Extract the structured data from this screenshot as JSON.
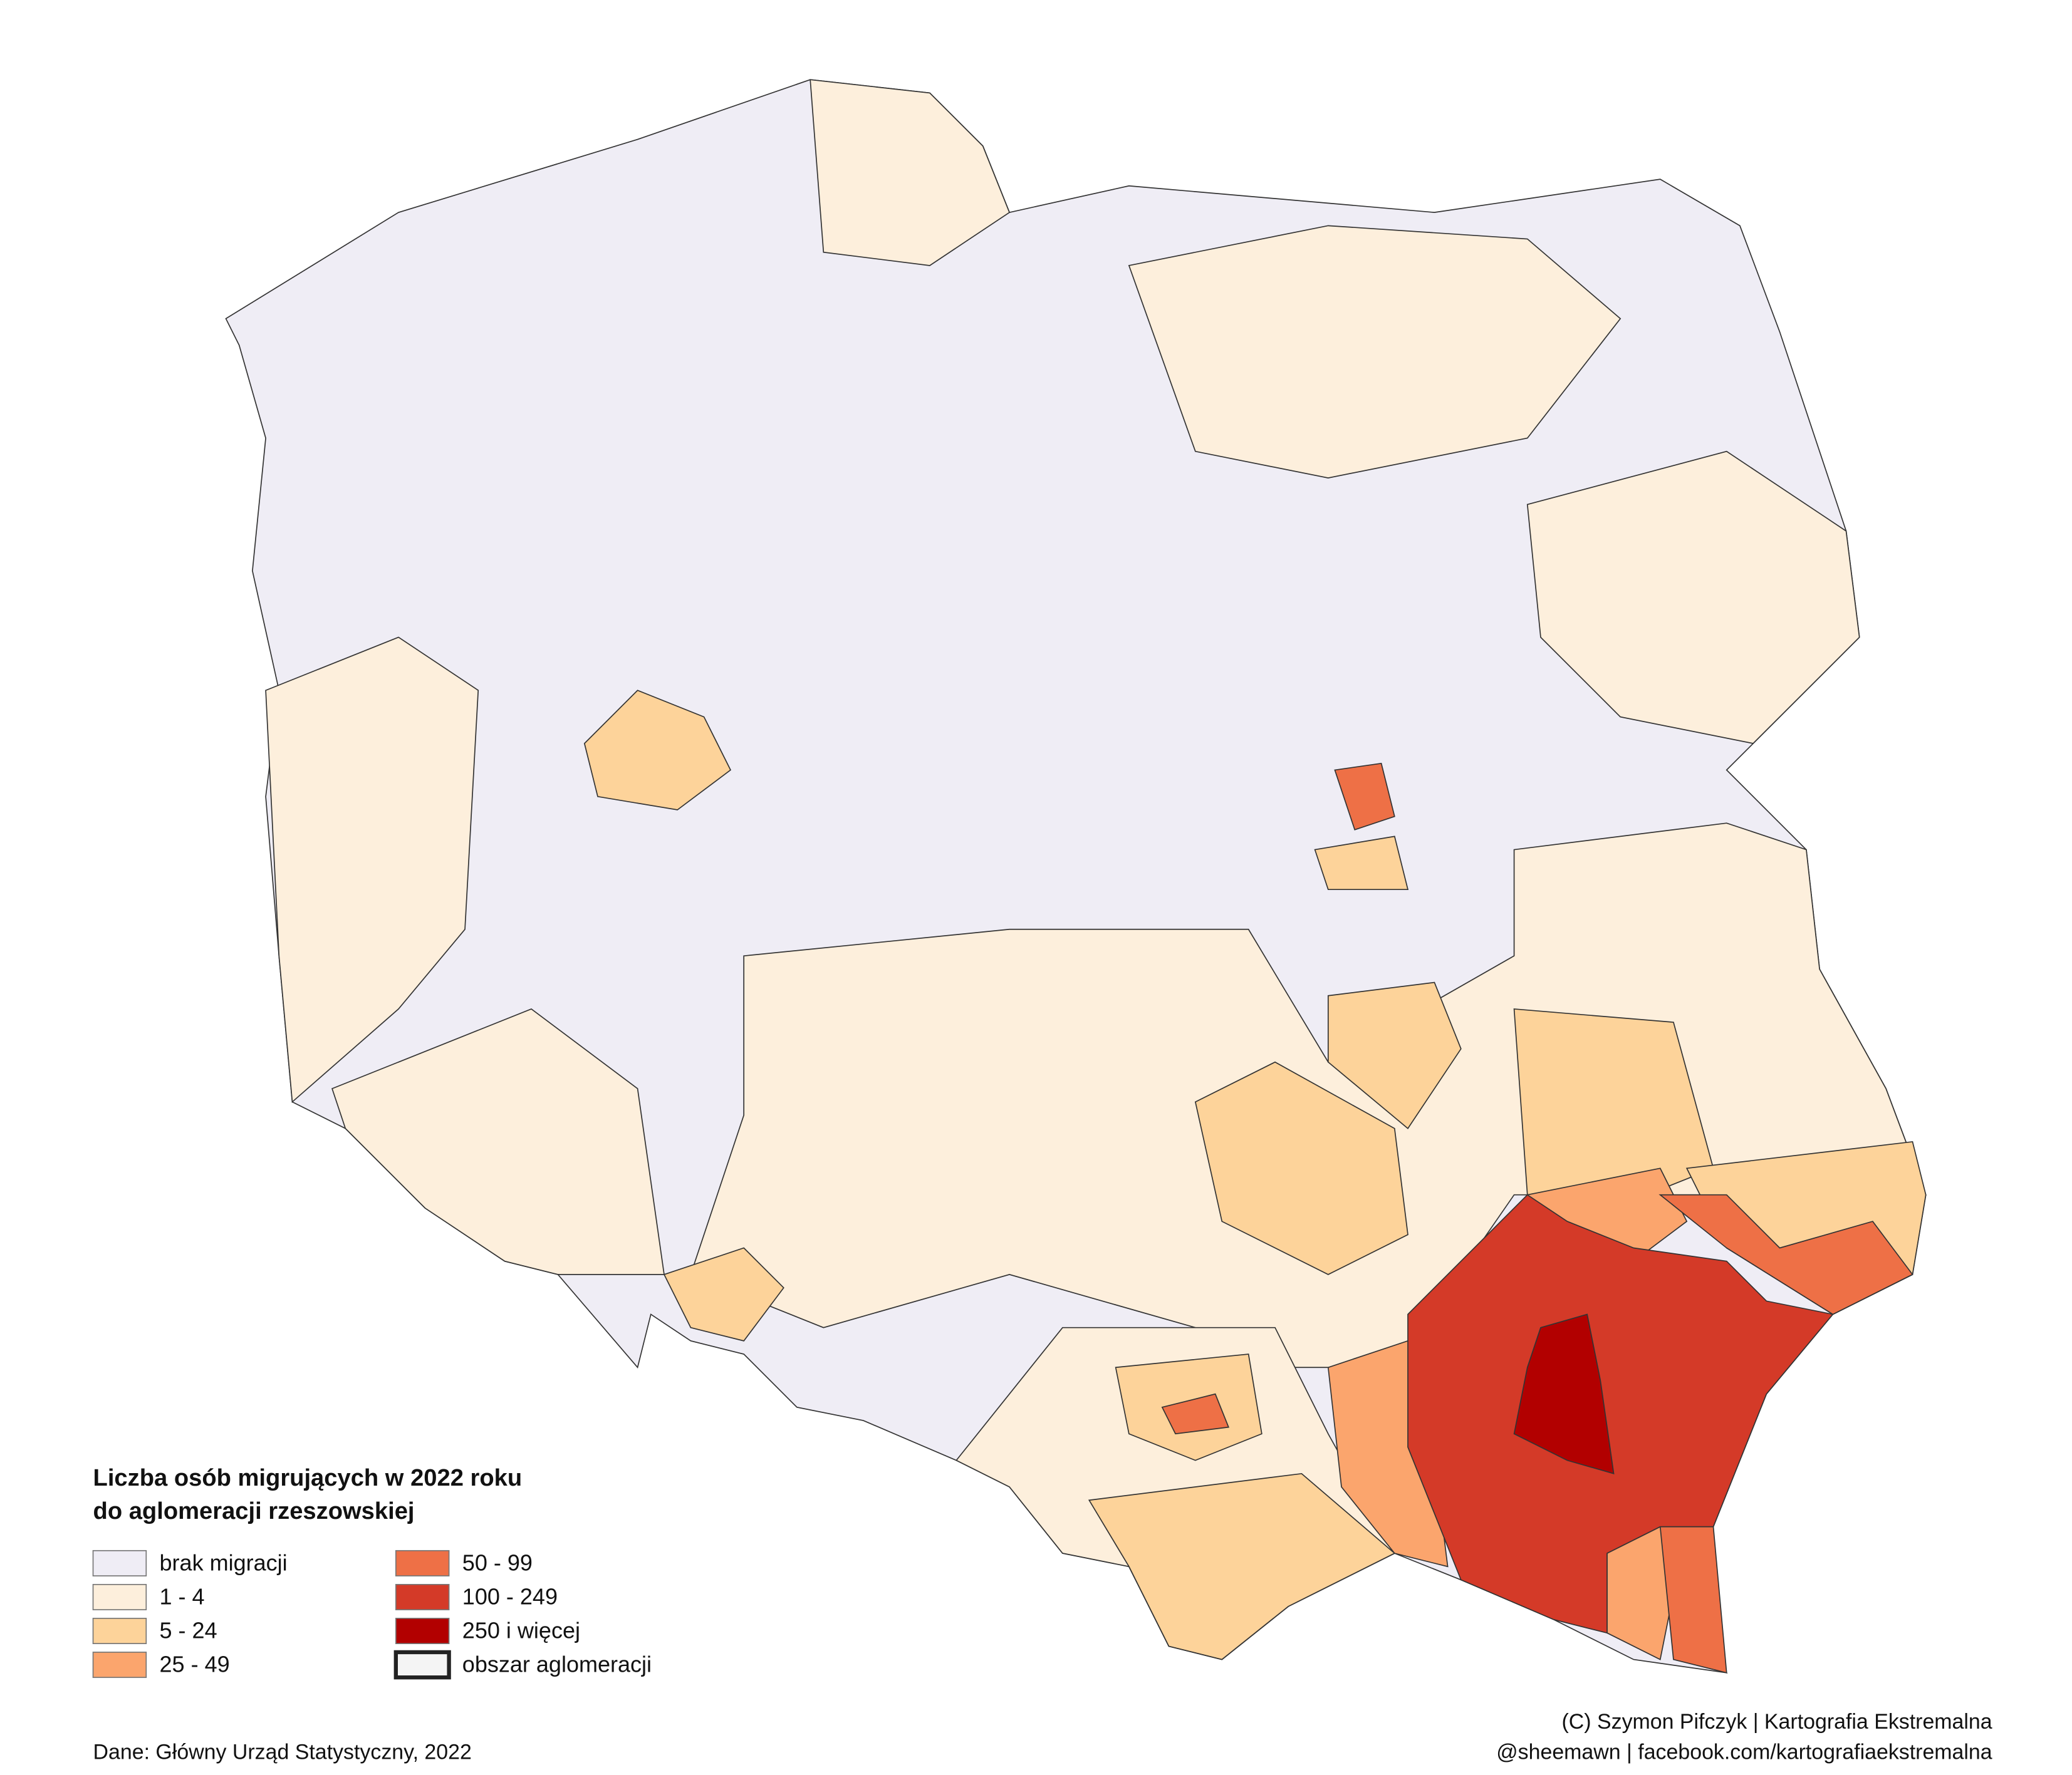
{
  "legend": {
    "title": [
      "Liczba osób migrujących w 2022 roku",
      "do aglomeracji rzeszowskiej"
    ],
    "items": [
      {
        "label": "brak migracji",
        "color": "#efedf5"
      },
      {
        "label": "1 - 4",
        "color": "#fdefdc"
      },
      {
        "label": "5 - 24",
        "color": "#fdd39a"
      },
      {
        "label": "25 - 49",
        "color": "#fba56d"
      },
      {
        "label": "50 - 99",
        "color": "#ee7046"
      },
      {
        "label": "100 - 249",
        "color": "#d43a28"
      },
      {
        "label": "250 i więcej",
        "color": "#b20000"
      },
      {
        "label": "obszar aglomeracji",
        "color": "#f4f4f4",
        "border": "#222222"
      }
    ]
  },
  "source": "Dane: Główny Urząd Statystyczny, 2022",
  "credits": [
    "(C) Szymon Pifczyk | Kartografia Ekstremalna",
    "@sheemawn | facebook.com/kartografiaekstremalna"
  ]
}
